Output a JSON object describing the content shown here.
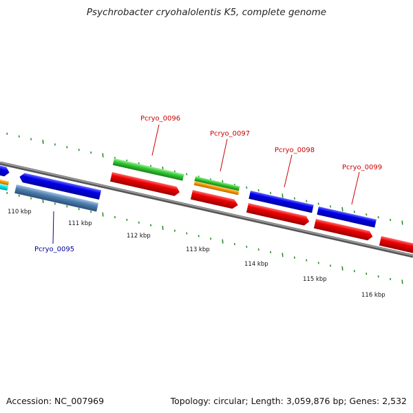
{
  "title": "Psychrobacter cryohalolentis K5, complete genome",
  "footer": {
    "accession": "Accession: NC_007969",
    "genome_info": "Topology: circular; Length: 3,059,876 bp; Genes: 2,532"
  },
  "ruler": {
    "ticks": [
      "110 kbp",
      "111 kbp",
      "112 kbp",
      "113 kbp",
      "114 kbp",
      "115 kbp",
      "116 kbp"
    ]
  },
  "genes": [
    {
      "id": "pcryo-0095",
      "label": "Pcryo_0095",
      "color": "#000099"
    },
    {
      "id": "pcryo-0096",
      "label": "Pcryo_0096",
      "color": "#cc0000"
    },
    {
      "id": "pcryo-0097",
      "label": "Pcryo_0097",
      "color": "#cc0000"
    },
    {
      "id": "pcryo-0098",
      "label": "Pcryo_0098",
      "color": "#cc0000"
    },
    {
      "id": "pcryo-0099",
      "label": "Pcryo_0099",
      "color": "#cc0000"
    }
  ],
  "colors": {
    "backbone": "#7f7f7f",
    "blue_feature": "#0000ee",
    "red_feature": "#ee0000",
    "green_feature": "#33cc33",
    "orange_feature": "#ff9900",
    "steel_feature": "#4f7fb0",
    "cyan_feature": "#00eeee",
    "tick_mark": "#2e8b2e"
  }
}
